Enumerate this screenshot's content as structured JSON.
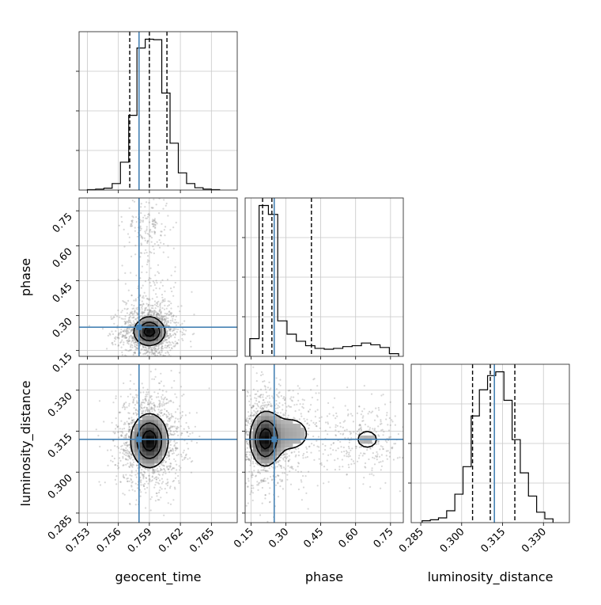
{
  "chart_data": {
    "type": "corner",
    "parameters": [
      "geocent_time",
      "phase",
      "luminosity_distance"
    ],
    "truths": {
      "geocent_time": 0.758,
      "phase": 0.25,
      "luminosity_distance": 0.312
    },
    "truth_color": "#4682b4",
    "grid": true,
    "axes": {
      "geocent_time": {
        "range": [
          0.7522,
          0.7675
        ],
        "ticks": [
          "0.753",
          "0.756",
          "0.759",
          "0.762",
          "0.765"
        ]
      },
      "phase": {
        "range": [
          0.125,
          0.805
        ],
        "ticks": [
          "0.15",
          "0.30",
          "0.45",
          "0.60",
          "0.75"
        ]
      },
      "luminosity_distance": {
        "range": [
          0.2815,
          0.3395
        ],
        "ticks": [
          "0.285",
          "0.300",
          "0.315",
          "0.330"
        ]
      }
    },
    "histograms": {
      "geocent_time": {
        "bin_edges": [
          0.753,
          0.7538,
          0.7546,
          0.7554,
          0.7562,
          0.757,
          0.7578,
          0.7586,
          0.7594,
          0.7602,
          0.761,
          0.7618,
          0.7626,
          0.7634,
          0.7642,
          0.765,
          0.7658
        ],
        "counts": [
          1,
          2,
          4,
          14,
          60,
          161,
          306,
          325,
          324,
          209,
          101,
          37,
          14,
          5,
          2,
          1
        ],
        "quantiles": [
          0.7571,
          0.759,
          0.7607
        ]
      },
      "phase": {
        "bin_edges": [
          0.145,
          0.185,
          0.225,
          0.265,
          0.305,
          0.345,
          0.385,
          0.425,
          0.465,
          0.505,
          0.545,
          0.585,
          0.625,
          0.665,
          0.705,
          0.745,
          0.785
        ],
        "counts": [
          20,
          170,
          160,
          40,
          25,
          17,
          12,
          9,
          8,
          9,
          11,
          12,
          15,
          13,
          10,
          3
        ],
        "quantiles": [
          0.2,
          0.24,
          0.41
        ]
      },
      "luminosity_distance": {
        "bin_edges": [
          0.2855,
          0.2885,
          0.2915,
          0.2945,
          0.2975,
          0.3005,
          0.3035,
          0.3065,
          0.3095,
          0.3125,
          0.3155,
          0.3185,
          0.3215,
          0.3245,
          0.3275,
          0.3305,
          0.3335
        ],
        "counts": [
          4,
          6,
          10,
          25,
          60,
          118,
          225,
          280,
          310,
          318,
          258,
          175,
          105,
          56,
          22,
          8
        ],
        "quantiles": [
          0.304,
          0.3105,
          0.3195
        ]
      }
    },
    "pairs": [
      {
        "x": "geocent_time",
        "y": "phase",
        "blobs": [
          {
            "cx": 0.759,
            "cy": 0.23,
            "sx": 0.0009,
            "sy": 0.035,
            "w": 0.78
          },
          {
            "cx": 0.759,
            "cy": 0.36,
            "sx": 0.0008,
            "sy": 0.06,
            "w": 0.11
          },
          {
            "cx": 0.7588,
            "cy": 0.68,
            "sx": 0.0007,
            "sy": 0.045,
            "w": 0.11
          }
        ],
        "contour_levels": [
          0.25,
          0.55,
          0.85
        ]
      },
      {
        "x": "geocent_time",
        "y": "luminosity_distance",
        "blobs": [
          {
            "cx": 0.759,
            "cy": 0.3115,
            "sx": 0.001,
            "sy": 0.0055,
            "w": 1.0
          }
        ],
        "contour_levels": [
          0.2,
          0.5,
          0.8
        ]
      },
      {
        "x": "phase",
        "y": "luminosity_distance",
        "blobs": [
          {
            "cx": 0.21,
            "cy": 0.312,
            "sx": 0.035,
            "sy": 0.0055,
            "w": 0.62
          },
          {
            "cx": 0.32,
            "cy": 0.314,
            "sx": 0.08,
            "sy": 0.006,
            "w": 0.2
          },
          {
            "cx": 0.65,
            "cy": 0.312,
            "sx": 0.055,
            "sy": 0.004,
            "w": 0.18
          }
        ],
        "contour_levels": [
          0.2,
          0.5,
          0.8
        ]
      }
    ]
  }
}
